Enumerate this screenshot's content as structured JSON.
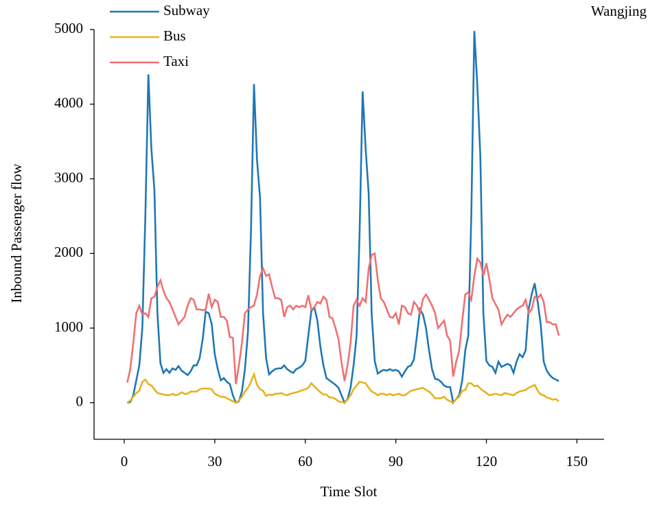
{
  "chart_data": {
    "type": "line",
    "title": "Wangjing",
    "x_label": "Time Slot",
    "y_label": "Inbound Passenger flow",
    "x": [
      1,
      2,
      3,
      4,
      5,
      6,
      7,
      8,
      9,
      10,
      11,
      12,
      13,
      14,
      15,
      16,
      17,
      18,
      19,
      20,
      21,
      22,
      23,
      24,
      25,
      26,
      27,
      28,
      29,
      30,
      31,
      32,
      33,
      34,
      35,
      36,
      37,
      38,
      39,
      40,
      41,
      42,
      43,
      44,
      45,
      46,
      47,
      48,
      49,
      50,
      51,
      52,
      53,
      54,
      55,
      56,
      57,
      58,
      59,
      60,
      61,
      62,
      63,
      64,
      65,
      66,
      67,
      68,
      69,
      70,
      71,
      72,
      73,
      74,
      75,
      76,
      77,
      78,
      79,
      80,
      81,
      82,
      83,
      84,
      85,
      86,
      87,
      88,
      89,
      90,
      91,
      92,
      93,
      94,
      95,
      96,
      97,
      98,
      99,
      100,
      101,
      102,
      103,
      104,
      105,
      106,
      107,
      108,
      109,
      110,
      111,
      112,
      113,
      114,
      115,
      116,
      117,
      118,
      119,
      120,
      121,
      122,
      123,
      124,
      125,
      126,
      127,
      128,
      129,
      130,
      131,
      132,
      133,
      134,
      135,
      136,
      137,
      138,
      139,
      140,
      141,
      142,
      143,
      144
    ],
    "series": [
      {
        "name": "Subway",
        "color": "#1f77b4",
        "values": [
          0,
          10,
          100,
          300,
          500,
          1000,
          2500,
          4400,
          3400,
          2850,
          1200,
          530,
          400,
          450,
          400,
          460,
          440,
          490,
          430,
          400,
          370,
          420,
          500,
          500,
          600,
          850,
          1220,
          1200,
          1050,
          650,
          450,
          300,
          330,
          280,
          250,
          100,
          0,
          20,
          150,
          450,
          950,
          2300,
          4270,
          3250,
          2750,
          1200,
          600,
          380,
          420,
          450,
          460,
          460,
          500,
          450,
          420,
          400,
          450,
          470,
          500,
          560,
          900,
          1230,
          1280,
          1100,
          750,
          500,
          330,
          300,
          270,
          240,
          200,
          100,
          0,
          50,
          200,
          500,
          900,
          2300,
          4170,
          3400,
          2800,
          1180,
          560,
          390,
          420,
          440,
          430,
          450,
          430,
          440,
          420,
          350,
          420,
          480,
          500,
          580,
          900,
          1250,
          1180,
          1000,
          700,
          450,
          320,
          310,
          280,
          230,
          210,
          210,
          0,
          50,
          100,
          300,
          700,
          900,
          2500,
          4980,
          4250,
          3300,
          1200,
          560,
          500,
          480,
          400,
          550,
          480,
          500,
          520,
          500,
          400,
          550,
          650,
          610,
          700,
          1250,
          1450,
          1600,
          1350,
          1050,
          550,
          430,
          370,
          330,
          310,
          290
        ]
      },
      {
        "name": "Bus",
        "color": "#e6b21e",
        "values": [
          0,
          30,
          80,
          130,
          160,
          280,
          310,
          250,
          230,
          180,
          130,
          120,
          110,
          100,
          100,
          120,
          100,
          110,
          140,
          120,
          120,
          150,
          150,
          150,
          180,
          190,
          190,
          190,
          180,
          120,
          100,
          80,
          80,
          60,
          40,
          20,
          0,
          30,
          80,
          150,
          200,
          280,
          380,
          240,
          180,
          160,
          90,
          110,
          100,
          120,
          120,
          130,
          110,
          100,
          120,
          130,
          140,
          150,
          170,
          180,
          200,
          260,
          220,
          180,
          140,
          110,
          110,
          70,
          70,
          50,
          20,
          10,
          0,
          40,
          100,
          180,
          230,
          280,
          270,
          260,
          200,
          150,
          130,
          100,
          120,
          120,
          100,
          120,
          100,
          110,
          120,
          100,
          100,
          130,
          160,
          170,
          180,
          190,
          200,
          170,
          150,
          110,
          60,
          60,
          60,
          80,
          40,
          20,
          0,
          50,
          80,
          160,
          170,
          260,
          260,
          220,
          230,
          190,
          160,
          130,
          100,
          110,
          120,
          110,
          100,
          130,
          120,
          110,
          100,
          130,
          150,
          160,
          170,
          200,
          220,
          240,
          160,
          110,
          100,
          70,
          60,
          40,
          50,
          20
        ]
      },
      {
        "name": "Taxi",
        "color": "#f07070",
        "values": [
          270,
          450,
          800,
          1200,
          1300,
          1180,
          1200,
          1150,
          1400,
          1420,
          1550,
          1640,
          1500,
          1400,
          1350,
          1250,
          1150,
          1050,
          1100,
          1150,
          1300,
          1400,
          1380,
          1250,
          1250,
          1240,
          1250,
          1460,
          1280,
          1380,
          1350,
          1150,
          1150,
          1100,
          880,
          870,
          250,
          500,
          800,
          1200,
          1250,
          1280,
          1300,
          1450,
          1700,
          1800,
          1700,
          1720,
          1550,
          1400,
          1400,
          1380,
          1150,
          1280,
          1300,
          1250,
          1300,
          1280,
          1300,
          1280,
          1440,
          1250,
          1280,
          1350,
          1330,
          1420,
          1380,
          1150,
          1130,
          1000,
          850,
          540,
          290,
          500,
          800,
          1300,
          1380,
          1300,
          1400,
          1350,
          1800,
          1980,
          2000,
          1650,
          1400,
          1350,
          1250,
          1150,
          1140,
          1200,
          1050,
          1300,
          1280,
          1200,
          1180,
          1350,
          1300,
          1200,
          1390,
          1450,
          1380,
          1300,
          1200,
          1000,
          1050,
          1100,
          900,
          830,
          350,
          550,
          700,
          1100,
          1450,
          1480,
          1380,
          1700,
          1930,
          1880,
          1700,
          1870,
          1650,
          1400,
          1320,
          1250,
          1050,
          1120,
          1180,
          1150,
          1200,
          1250,
          1280,
          1300,
          1380,
          1200,
          1250,
          1420,
          1400,
          1450,
          1350,
          1080,
          1080,
          1050,
          1050,
          900
        ]
      }
    ],
    "xlim": [
      -10,
      159
    ],
    "xticks": [
      0,
      30,
      60,
      90,
      120,
      150
    ],
    "ylim": [
      -490,
      5000
    ],
    "yticks": [
      0,
      1000,
      2000,
      3000,
      4000,
      5000
    ],
    "legend": "upper left"
  }
}
